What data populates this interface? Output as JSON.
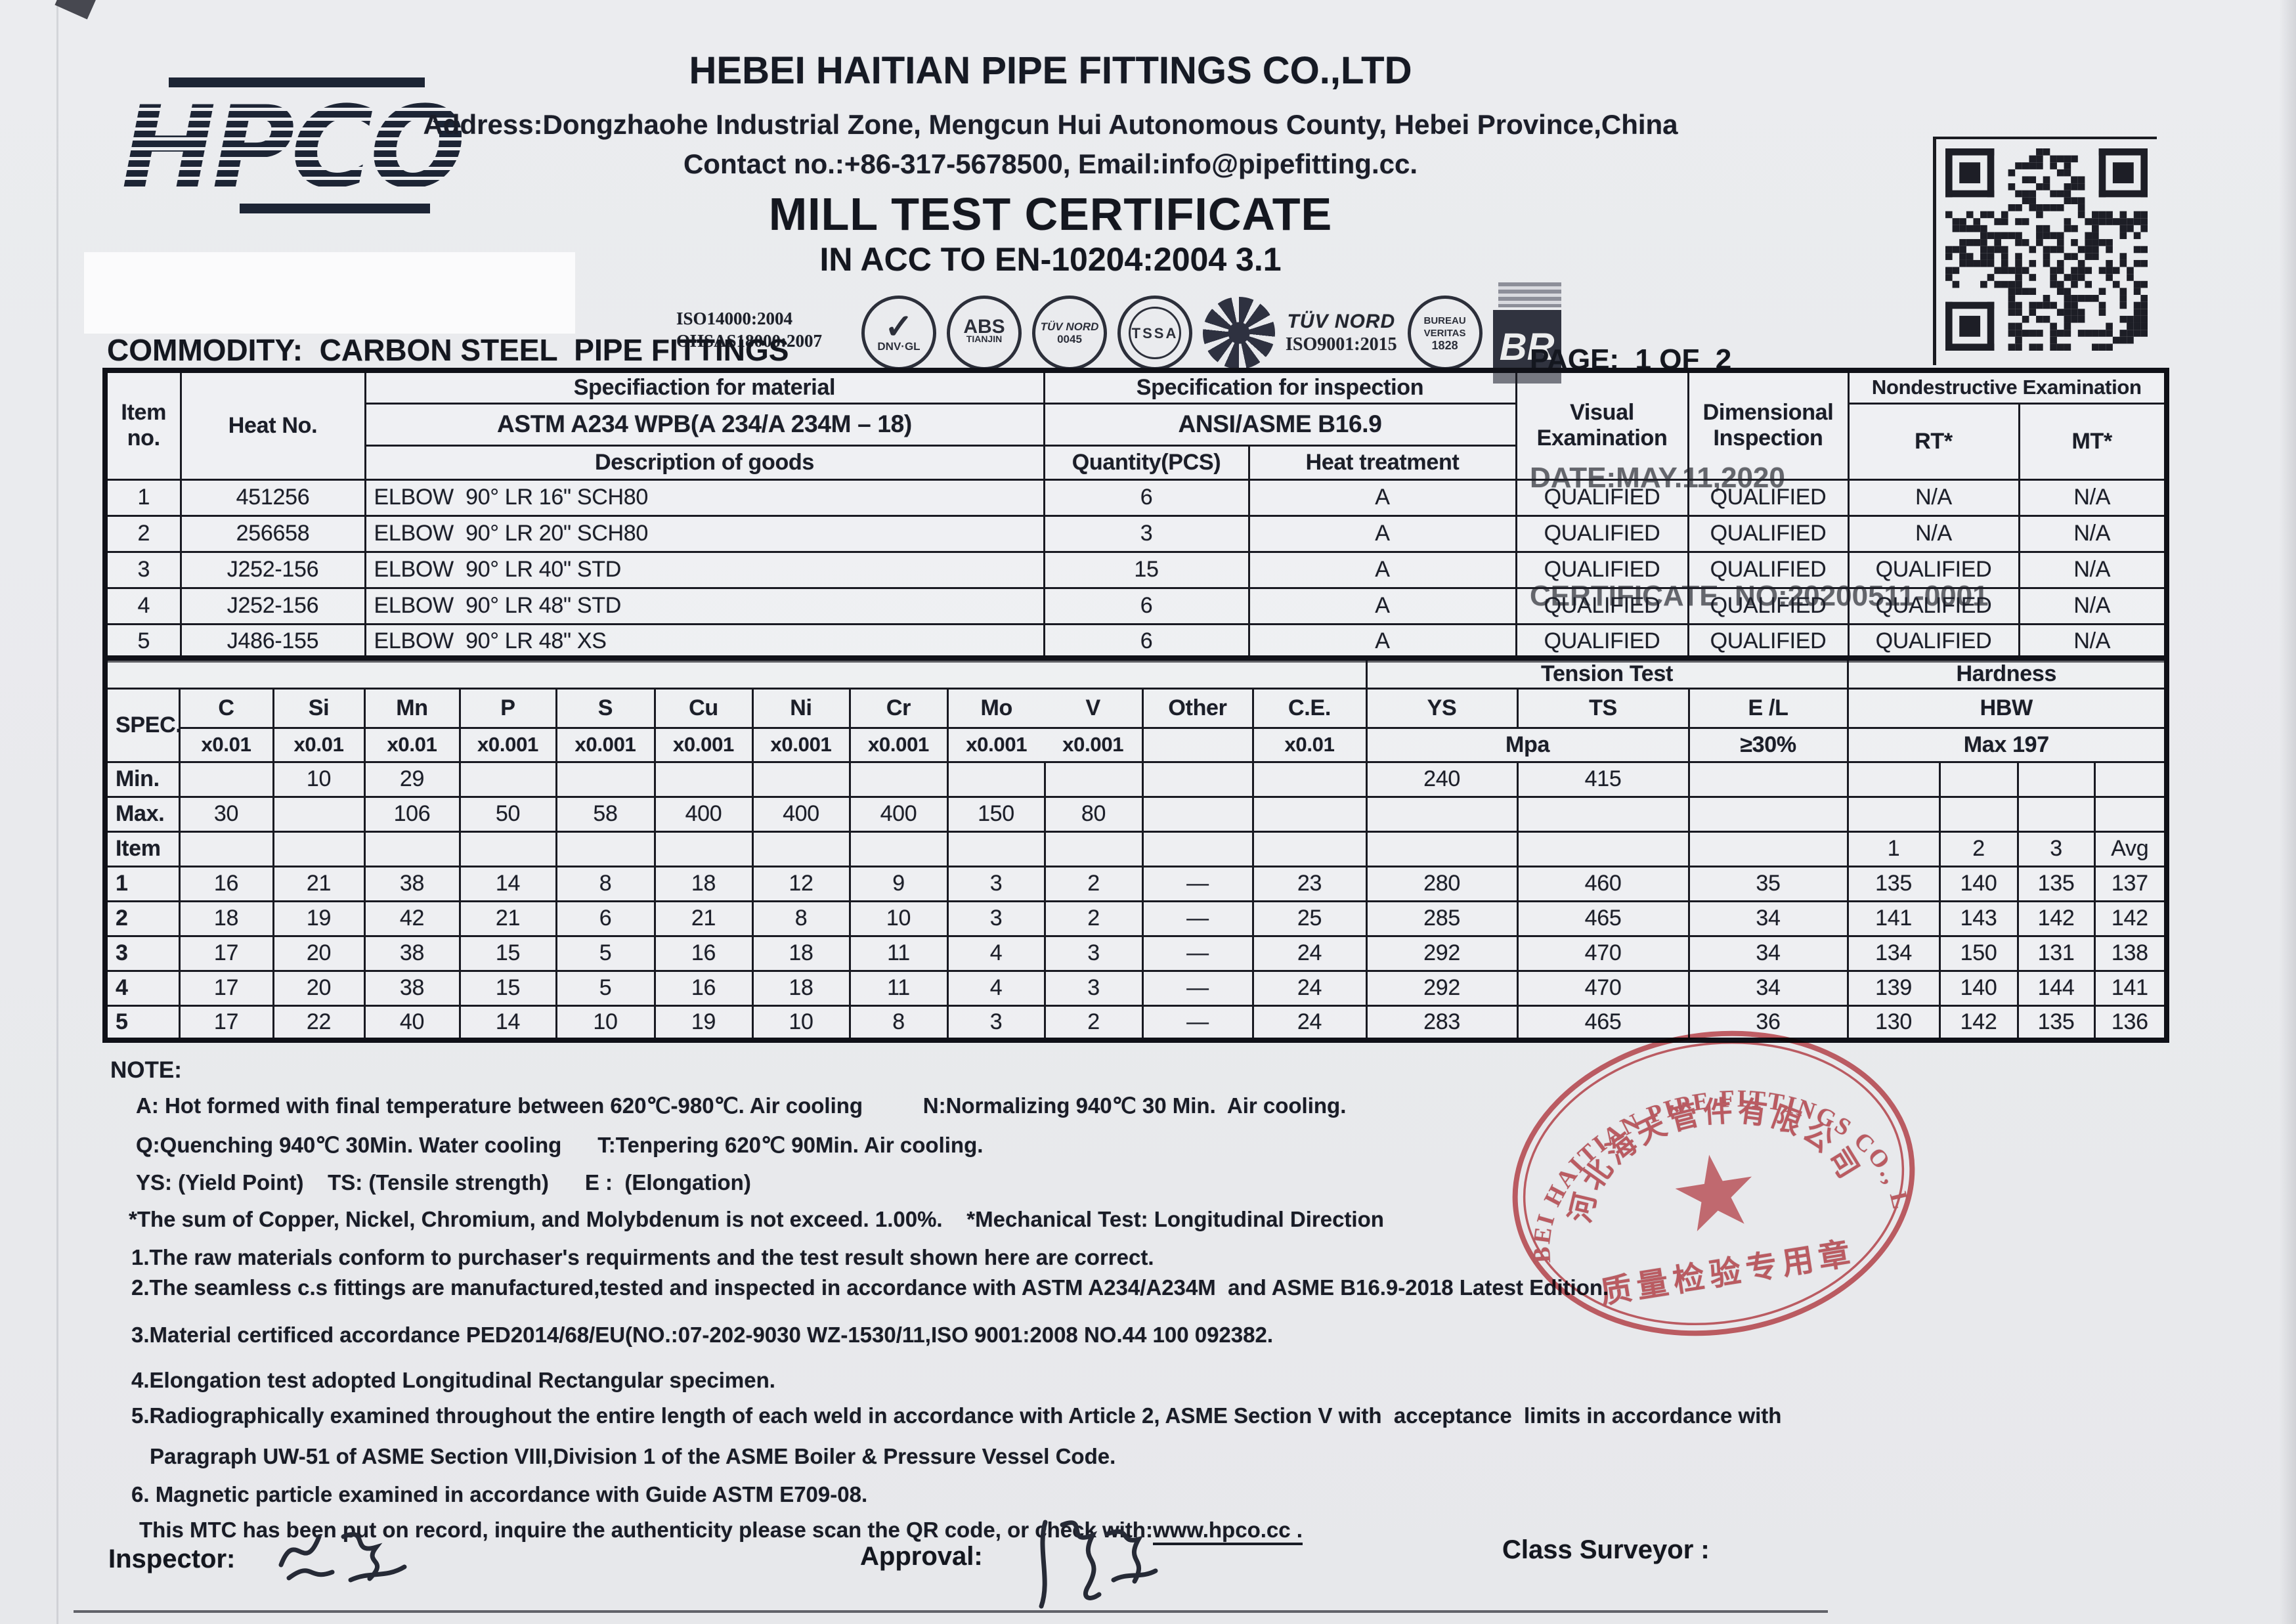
{
  "header": {
    "logo_text": "HPCO",
    "company_name": "HEBEI HAITIAN PIPE FITTINGS CO.,LTD",
    "address": "Address:Dongzhaohe Industrial Zone, Mengcun Hui Autonomous County, Hebei Province,China",
    "contact": "Contact no.:+86-317-5678500, Email:info@pipefitting.cc.",
    "doc_title": "MILL TEST CERTIFICATE",
    "doc_subtitle": "IN ACC TO EN-10204:2004 3.1",
    "iso_label": "ISO14000:2004\nOHSAS18000:2007",
    "badges": {
      "dnv_check": "✓",
      "dnv": "DNV·GL",
      "abs": "ABS",
      "abs_sub": "TIANJIN",
      "tuv1": "TÜV NORD",
      "tuv1_num": "0045",
      "tssa": "TSSA",
      "tuv2": "TÜV NORD",
      "tuv2_sub": "ISO9001:2015",
      "bv": "BUREAU VERITAS",
      "bv_year": "1828",
      "br": "BR"
    },
    "page_label": "PAGE:  1 OF  2",
    "date_label": "DATE:MAY.11,2020",
    "certificate_label": "CERTIFICATE  NO:20200511-0001",
    "commodity": "COMMODITY:  CARBON STEEL  PIPE FITTINGS"
  },
  "table1": {
    "headers": {
      "item_no": "Item\nno.",
      "heat_no": "Heat No.",
      "spec_material": "Specifiaction for material",
      "spec_material_std": "ASTM A234 WPB(A 234/A 234M – 18)",
      "desc_goods": "Description of goods",
      "spec_inspection": "Specification for inspection",
      "spec_inspection_std": "ANSI/ASME B16.9",
      "quantity": "Quantity(PCS)",
      "heat_treatment": "Heat treatment",
      "visual": "Visual\nExamination",
      "dimensional": "Dimensional\nInspection",
      "nde": "Nondestructive Examination",
      "rt": "RT*",
      "mt": "MT*"
    },
    "rows": [
      [
        "1",
        "451256",
        "ELBOW  90° LR 16\" SCH80",
        "6",
        "A",
        "QUALIFIED",
        "QUALIFIED",
        "N/A",
        "N/A"
      ],
      [
        "2",
        "256658",
        "ELBOW  90° LR 20\" SCH80",
        "3",
        "A",
        "QUALIFIED",
        "QUALIFIED",
        "N/A",
        "N/A"
      ],
      [
        "3",
        "J252-156",
        "ELBOW  90° LR 40\" STD",
        "15",
        "A",
        "QUALIFIED",
        "QUALIFIED",
        "QUALIFIED",
        "N/A"
      ],
      [
        "4",
        "J252-156",
        "ELBOW  90° LR 48\" STD",
        "6",
        "A",
        "QUALIFIED",
        "QUALIFIED",
        "QUALIFIED",
        "N/A"
      ],
      [
        "5",
        "J486-155",
        "ELBOW  90° LR 48\" XS",
        "6",
        "A",
        "QUALIFIED",
        "QUALIFIED",
        "QUALIFIED",
        "N/A"
      ]
    ]
  },
  "table2": {
    "headers": {
      "spec": "SPEC.",
      "tension": "Tension Test",
      "hardness": "Hardness",
      "c": "C",
      "si": "Si",
      "mn": "Mn",
      "p": "P",
      "s": "S",
      "cu": "Cu",
      "ni": "Ni",
      "cr": "Cr",
      "mo": "Mo",
      "v": "V",
      "other": "Other",
      "ce": "C.E.",
      "ys": "YS",
      "ts": "TS",
      "el": "E /L",
      "hbw": "HBW",
      "m_c": "x0.01",
      "m_si": "x0.01",
      "m_mn": "x0.01",
      "m_p": "x0.001",
      "m_s": "x0.001",
      "m_cu": "x0.001",
      "m_ni": "x0.001",
      "m_cr": "x0.001",
      "m_mo": "x0.001",
      "m_v": "x0.001",
      "m_ce": "x0.01",
      "mpa": "Mpa",
      "el_req": "≥30%",
      "hbw_req": "Max 197"
    },
    "rows": [
      [
        "Min.",
        "",
        "10",
        "29",
        "",
        "",
        "",
        "",
        "",
        "",
        "",
        "",
        "",
        "240",
        "415",
        "",
        "",
        "",
        "",
        ""
      ],
      [
        "Max.",
        "30",
        "",
        "106",
        "50",
        "58",
        "400",
        "400",
        "400",
        "150",
        "80",
        "",
        "",
        "",
        "",
        "",
        "",
        "",
        "",
        ""
      ],
      [
        "Item",
        "",
        "",
        "",
        "",
        "",
        "",
        "",
        "",
        "",
        "",
        "",
        "",
        "",
        "",
        "",
        "1",
        "2",
        "3",
        "Avg"
      ],
      [
        "1",
        "16",
        "21",
        "38",
        "14",
        "8",
        "18",
        "12",
        "9",
        "3",
        "2",
        "—",
        "23",
        "280",
        "460",
        "35",
        "135",
        "140",
        "135",
        "137"
      ],
      [
        "2",
        "18",
        "19",
        "42",
        "21",
        "6",
        "21",
        "8",
        "10",
        "3",
        "2",
        "—",
        "25",
        "285",
        "465",
        "34",
        "141",
        "143",
        "142",
        "142"
      ],
      [
        "3",
        "17",
        "20",
        "38",
        "15",
        "5",
        "16",
        "18",
        "11",
        "4",
        "3",
        "—",
        "24",
        "292",
        "470",
        "34",
        "134",
        "150",
        "131",
        "138"
      ],
      [
        "4",
        "17",
        "20",
        "38",
        "15",
        "5",
        "16",
        "18",
        "11",
        "4",
        "3",
        "—",
        "24",
        "292",
        "470",
        "34",
        "139",
        "140",
        "144",
        "141"
      ],
      [
        "5",
        "17",
        "22",
        "40",
        "14",
        "10",
        "19",
        "10",
        "8",
        "3",
        "2",
        "—",
        "24",
        "283",
        "465",
        "36",
        "130",
        "142",
        "135",
        "136"
      ]
    ]
  },
  "notes": {
    "label": "NOTE:",
    "line_a": "A: Hot formed with final temperature between 620℃-980℃. Air cooling          N:Normalizing 940℃ 30 Min.  Air cooling.",
    "line_q": "Q:Quenching 940℃ 30Min. Water cooling      T:Tenpering 620℃ 90Min. Air cooling.",
    "line_ys": "YS: (Yield Point)    TS: (Tensile strength)      E :  (Elongation)",
    "line_sum": "*The sum of Copper, Nickel, Chromium, and Molybdenum is not exceed. 1.00%.    *Mechanical Test: Longitudinal Direction",
    "item1": "1.The raw materials conform to purchaser's requirments and the test result shown here are correct.",
    "item2": "2.The seamless c.s fittings are manufactured,tested and inspected in accordance with ASTM A234/A234M  and ASME B16.9-2018 Latest Edition.",
    "item3": "3.Material certificed accordance PED2014/68/EU(NO.:07-202-9030 WZ-1530/11,ISO 9001:2008 NO.44 100 092382.",
    "item4": "4.Elongation test adopted Longitudinal Rectangular specimen.",
    "item5a": "5.Radiographically examined throughout the entire length of each weld in accordance with Article 2, ASME Section V with  acceptance  limits in accordance with",
    "item5b": "Paragraph UW-51 of ASME Section VIII,Division 1 of the ASME Boiler & Pressure Vessel Code.",
    "item6": "6. Magnetic particle examined in accordance with Guide ASTM E709-08.",
    "mtc_prefix": "This MTC has been put on record, inquire the authenticity please scan the QR code, or check with:",
    "mtc_link": "www.hpco.cc ."
  },
  "footer": {
    "inspector_label": "Inspector:",
    "inspector_signature": "张颀",
    "approval_label": "Approval:",
    "approval_signature": "刘晓",
    "surveyor_label": "Class Surveyor :"
  },
  "stamp": {
    "line_en": "HEBEI HAITIAN PIPE FITTINGS CO., LTD",
    "line_cn": "河北海天管件有限公司",
    "line_bottom": "质量检验专用章"
  }
}
